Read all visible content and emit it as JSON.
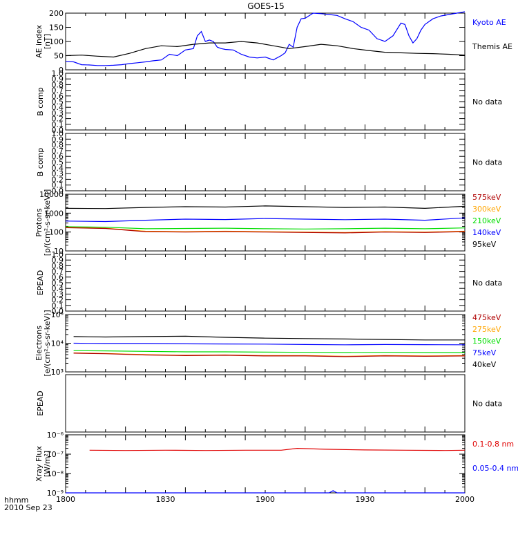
{
  "title": "GOES-15",
  "time_axis": {
    "ticks": [
      "1800",
      "1830",
      "1900",
      "1930",
      "2000"
    ],
    "label_line1": "hhmm",
    "label_line2": "2010 Sep 23"
  },
  "colors": {
    "axis": "#000000",
    "black": "#000000",
    "blue": "#0000ff",
    "red": "#e00000",
    "orange": "#ffa500",
    "green": "#00dd00",
    "darkred": "#b00000"
  },
  "chart_data": [
    {
      "type": "line",
      "ylabel": [
        "AE index",
        "[nT]"
      ],
      "ylim": [
        0,
        200
      ],
      "yticks": [
        "0",
        "50",
        "100",
        "150",
        "200"
      ],
      "legend": [
        {
          "text": "Kyoto AE",
          "color": "#0000ff"
        },
        {
          "text": "Themis AE",
          "color": "#000000"
        }
      ],
      "series": [
        {
          "name": "Kyoto AE",
          "color": "#0000ff",
          "x": [
            0,
            4,
            8,
            12,
            16,
            20,
            24,
            28,
            32,
            36,
            40,
            44,
            48,
            52,
            56,
            60,
            64,
            66,
            68,
            70,
            72,
            74,
            76,
            78,
            80,
            84,
            88,
            92,
            96,
            100,
            104,
            108,
            110,
            112,
            114,
            116,
            118,
            120,
            124,
            128,
            132,
            136,
            140,
            144,
            148,
            152,
            156,
            160,
            164,
            168,
            170,
            172,
            174,
            176,
            178,
            180,
            184,
            188,
            192,
            196,
            200
          ],
          "y": [
            30,
            28,
            18,
            17,
            15,
            15,
            16,
            18,
            22,
            25,
            28,
            32,
            35,
            55,
            50,
            70,
            75,
            120,
            135,
            100,
            105,
            100,
            80,
            75,
            72,
            70,
            55,
            45,
            42,
            45,
            35,
            50,
            60,
            90,
            80,
            150,
            180,
            182,
            200,
            198,
            195,
            192,
            180,
            170,
            150,
            140,
            110,
            100,
            120,
            165,
            160,
            120,
            95,
            110,
            140,
            160,
            180,
            190,
            195,
            200,
            205
          ]
        },
        {
          "name": "Themis AE",
          "color": "#000000",
          "x": [
            0,
            8,
            16,
            24,
            32,
            40,
            48,
            56,
            64,
            72,
            80,
            88,
            96,
            104,
            112,
            120,
            128,
            136,
            144,
            152,
            160,
            168,
            176,
            184,
            192,
            200
          ],
          "y": [
            50,
            52,
            48,
            45,
            58,
            75,
            85,
            82,
            90,
            95,
            95,
            100,
            95,
            85,
            75,
            82,
            90,
            85,
            75,
            68,
            62,
            60,
            58,
            57,
            55,
            52
          ]
        }
      ]
    },
    {
      "type": "line",
      "ylabel": [
        "B comp"
      ],
      "ylim": [
        0,
        1
      ],
      "yticks": [
        "0.0",
        "0.1",
        "0.2",
        "0.3",
        "0.4",
        "0.5",
        "0.6",
        "0.7",
        "0.8",
        "0.9",
        "1.0"
      ],
      "nodata": "No data",
      "series": []
    },
    {
      "type": "line",
      "ylabel": [
        "B comp"
      ],
      "ylim": [
        0,
        1
      ],
      "yticks": [
        "0.0",
        "0.1",
        "0.2",
        "0.3",
        "0.4",
        "0.5",
        "0.6",
        "0.7",
        "0.8",
        "0.9",
        "1.0"
      ],
      "nodata": "No data",
      "series": []
    },
    {
      "type": "line",
      "log": true,
      "ylabel": [
        "Protons",
        "[p/(cm²-s-sr-keV)]"
      ],
      "ylim": [
        10,
        10000
      ],
      "yticks": [
        "10",
        "100",
        "1000",
        "10000"
      ],
      "legend": [
        {
          "text": "575keV",
          "color": "#b00000"
        },
        {
          "text": "300keV",
          "color": "#ffa500"
        },
        {
          "text": "210keV",
          "color": "#00dd00"
        },
        {
          "text": "140keV",
          "color": "#0000ff"
        },
        {
          "text": "95keV",
          "color": "#000000"
        }
      ],
      "series": [
        {
          "name": "95keV",
          "color": "#000000",
          "x": [
            0,
            20,
            40,
            60,
            80,
            100,
            120,
            140,
            160,
            180,
            200
          ],
          "y": [
            1800,
            1750,
            2000,
            2200,
            2100,
            2400,
            2200,
            2000,
            2100,
            1800,
            2300
          ]
        },
        {
          "name": "140keV",
          "color": "#0000ff",
          "x": [
            0,
            20,
            40,
            60,
            80,
            100,
            120,
            140,
            160,
            180,
            200
          ],
          "y": [
            380,
            360,
            420,
            480,
            460,
            520,
            480,
            450,
            480,
            420,
            560
          ]
        },
        {
          "name": "210keV",
          "color": "#00dd00",
          "x": [
            0,
            20,
            40,
            60,
            80,
            100,
            120,
            140,
            160,
            180,
            200
          ],
          "y": [
            190,
            180,
            150,
            155,
            160,
            150,
            145,
            150,
            160,
            150,
            165
          ]
        },
        {
          "name": "300keV",
          "color": "#ffa500",
          "x": [
            0,
            20,
            40,
            60,
            80,
            100,
            120,
            140,
            160,
            180,
            200
          ],
          "y": [
            175,
            160,
            110,
            105,
            110,
            105,
            100,
            95,
            105,
            100,
            110
          ]
        },
        {
          "name": "575keV",
          "color": "#b00000",
          "x": [
            0,
            20,
            40,
            60,
            80,
            100,
            120,
            140,
            160,
            180,
            200
          ],
          "y": [
            170,
            155,
            105,
            100,
            105,
            100,
            95,
            90,
            100,
            95,
            105
          ]
        }
      ]
    },
    {
      "type": "line",
      "ylabel": [
        "EPEAD"
      ],
      "ylim": [
        0,
        1
      ],
      "yticks": [
        "0.0",
        "0.1",
        "0.2",
        "0.3",
        "0.4",
        "0.5",
        "0.6",
        "0.7",
        "0.8",
        "0.9",
        "1.0"
      ],
      "nodata": "No data",
      "series": []
    },
    {
      "type": "line",
      "log": true,
      "ylabel": [
        "Electrons",
        "[e/(cm²-s-sr-keV)]"
      ],
      "ylim": [
        1000,
        100000
      ],
      "yticks": [
        "10³",
        "10⁴",
        "10⁵"
      ],
      "legend": [
        {
          "text": "475keV",
          "color": "#b00000"
        },
        {
          "text": "275keV",
          "color": "#ffa500"
        },
        {
          "text": "150keV",
          "color": "#00dd00"
        },
        {
          "text": "75keV",
          "color": "#0000ff"
        },
        {
          "text": "40keV",
          "color": "#000000"
        }
      ],
      "series": [
        {
          "name": "40keV",
          "color": "#000000",
          "x": [
            4,
            20,
            40,
            60,
            80,
            100,
            120,
            140,
            160,
            180,
            200
          ],
          "y": [
            17000,
            16500,
            17000,
            17500,
            16000,
            15000,
            14500,
            14000,
            13500,
            13000,
            13000
          ]
        },
        {
          "name": "75keV",
          "color": "#0000ff",
          "x": [
            4,
            20,
            40,
            60,
            80,
            100,
            120,
            140,
            160,
            180,
            200
          ],
          "y": [
            10000,
            9800,
            9800,
            9500,
            9400,
            9300,
            9000,
            8800,
            9000,
            8900,
            8800
          ]
        },
        {
          "name": "150keV",
          "color": "#00dd00",
          "x": [
            4,
            20,
            40,
            60,
            80,
            100,
            120,
            140,
            160,
            180,
            200
          ],
          "y": [
            5500,
            5400,
            5200,
            5000,
            5000,
            4900,
            4800,
            4700,
            4800,
            4700,
            4700
          ]
        },
        {
          "name": "275keV",
          "color": "#ffa500",
          "x": [
            4,
            20,
            40,
            60,
            80,
            100,
            120,
            140,
            160,
            180,
            200
          ],
          "y": [
            4600,
            4400,
            4000,
            3800,
            3900,
            3700,
            3700,
            3500,
            3700,
            3600,
            3700
          ]
        },
        {
          "name": "475keV",
          "color": "#b00000",
          "x": [
            4,
            20,
            40,
            60,
            80,
            100,
            120,
            140,
            160,
            180,
            200
          ],
          "y": [
            4500,
            4300,
            3900,
            3700,
            3800,
            3600,
            3600,
            3400,
            3600,
            3500,
            3600
          ]
        }
      ]
    },
    {
      "type": "line",
      "ylabel": [
        "EPEAD"
      ],
      "ylim": [
        0,
        1
      ],
      "yticks": [],
      "nodata": "No data",
      "series": []
    },
    {
      "type": "line",
      "log": true,
      "ylabel": [
        "Xray Flux",
        "[W/m²]"
      ],
      "ylim": [
        1e-09,
        1e-06
      ],
      "yticks": [
        "10⁻⁹",
        "10⁻⁸",
        "10⁻⁷",
        "10⁻⁶"
      ],
      "legend": [
        {
          "text": "0.1-0.8 nm",
          "color": "#e00000"
        },
        {
          "text": "0.05-0.4 nm",
          "color": "#0000ff"
        }
      ],
      "series": [
        {
          "name": "0.1-0.8 nm",
          "color": "#e00000",
          "x": [
            12,
            30,
            50,
            70,
            90,
            108,
            116,
            130,
            150,
            170,
            190,
            200
          ],
          "y": [
            1.6e-07,
            1.55e-07,
            1.6e-07,
            1.55e-07,
            1.6e-07,
            1.6e-07,
            2e-07,
            1.8e-07,
            1.65e-07,
            1.6e-07,
            1.55e-07,
            1.6e-07
          ]
        },
        {
          "name": "0.05-0.4 nm",
          "color": "#0000ff",
          "x": [
            0,
            50,
            100,
            132,
            134,
            136,
            150,
            200
          ],
          "y": [
            1e-09,
            1e-09,
            1e-09,
            1e-09,
            1.3e-09,
            1e-09,
            1e-09,
            1e-09
          ]
        }
      ]
    }
  ]
}
